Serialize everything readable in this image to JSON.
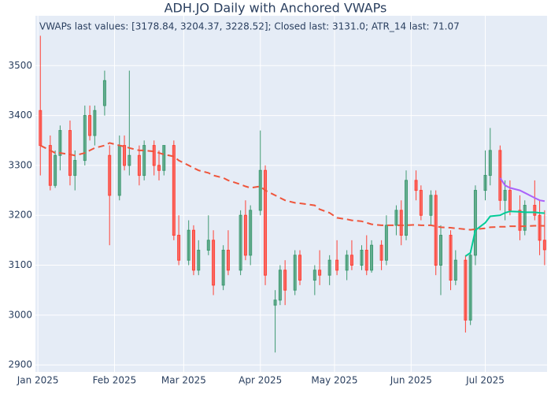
{
  "chart_data": {
    "type": "candlestick",
    "title": "ADH.JO Daily with Anchored VWAPs",
    "annotation": "VWAPs last values: [3178.84, 3204.37, 3228.52]; Closed last: 3131.0; ATR_14 last: 71.07",
    "x": [
      "2025-01-02",
      "2025-01-06",
      "2025-01-08",
      "2025-01-10",
      "2025-01-14",
      "2025-01-16",
      "2025-01-20",
      "2025-01-22",
      "2025-01-24",
      "2025-01-28",
      "2025-01-30",
      "2025-02-03",
      "2025-02-05",
      "2025-02-07",
      "2025-02-11",
      "2025-02-13",
      "2025-02-17",
      "2025-02-19",
      "2025-02-21",
      "2025-02-25",
      "2025-02-27",
      "2025-03-03",
      "2025-03-05",
      "2025-03-07",
      "2025-03-11",
      "2025-03-13",
      "2025-03-17",
      "2025-03-19",
      "2025-03-24",
      "2025-03-26",
      "2025-03-28",
      "2025-04-01",
      "2025-04-03",
      "2025-04-07",
      "2025-04-09",
      "2025-04-11",
      "2025-04-15",
      "2025-04-17",
      "2025-04-23",
      "2025-04-25",
      "2025-04-29",
      "2025-05-02",
      "2025-05-06",
      "2025-05-08",
      "2025-05-12",
      "2025-05-14",
      "2025-05-16",
      "2025-05-20",
      "2025-05-22",
      "2025-05-26",
      "2025-05-28",
      "2025-05-30",
      "2025-06-03",
      "2025-06-05",
      "2025-06-09",
      "2025-06-11",
      "2025-06-13",
      "2025-06-17",
      "2025-06-19",
      "2025-06-23",
      "2025-06-25",
      "2025-06-27",
      "2025-07-01",
      "2025-07-03",
      "2025-07-07",
      "2025-07-09",
      "2025-07-11",
      "2025-07-15",
      "2025-07-17",
      "2025-07-21",
      "2025-07-23",
      "2025-07-25"
    ],
    "open": [
      3410,
      3340,
      3260,
      3320,
      3370,
      3280,
      3310,
      3400,
      3360,
      3420,
      3320,
      3240,
      3340,
      3300,
      3320,
      3280,
      3340,
      3300,
      3290,
      3340,
      3160,
      3110,
      3170,
      3090,
      3130,
      3150,
      3060,
      3130,
      3090,
      3200,
      3120,
      3210,
      3290,
      3020,
      3030,
      3090,
      3050,
      3120,
      3070,
      3090,
      3080,
      3110,
      3090,
      3120,
      3100,
      3130,
      3090,
      3140,
      3110,
      3180,
      3210,
      3160,
      3270,
      3250,
      3200,
      3240,
      3100,
      3160,
      3070,
      3110,
      2990,
      3120,
      3250,
      3280,
      3330,
      3230,
      3250,
      3210,
      3170,
      3220,
      3200,
      3150
    ],
    "high": [
      3560,
      3360,
      3330,
      3380,
      3390,
      3330,
      3420,
      3420,
      3420,
      3490,
      3340,
      3360,
      3360,
      3490,
      3340,
      3350,
      3350,
      3330,
      3340,
      3350,
      3200,
      3190,
      3180,
      3150,
      3200,
      3170,
      3140,
      3170,
      3210,
      3230,
      3220,
      3370,
      3300,
      3050,
      3100,
      3110,
      3130,
      3130,
      3100,
      3130,
      3120,
      3150,
      3130,
      3150,
      3140,
      3160,
      3150,
      3150,
      3200,
      3220,
      3230,
      3290,
      3290,
      3260,
      3250,
      3250,
      3180,
      3170,
      3130,
      3120,
      3130,
      3260,
      3330,
      3375,
      3340,
      3270,
      3270,
      3240,
      3230,
      3270,
      3230,
      3210
    ],
    "low": [
      3280,
      3250,
      3255,
      3290,
      3260,
      3250,
      3300,
      3350,
      3340,
      3400,
      3140,
      3230,
      3290,
      3280,
      3260,
      3270,
      3280,
      3270,
      3280,
      3150,
      3100,
      3100,
      3080,
      3080,
      3120,
      3040,
      3050,
      3080,
      3080,
      3110,
      3100,
      3200,
      3060,
      2925,
      3020,
      3020,
      3040,
      3060,
      3040,
      3060,
      3060,
      3080,
      3070,
      3090,
      3090,
      3080,
      3085,
      3090,
      3100,
      3160,
      3140,
      3150,
      3230,
      3190,
      3180,
      3080,
      3040,
      3050,
      3060,
      2965,
      2980,
      3100,
      3230,
      3260,
      3210,
      3190,
      3200,
      3150,
      3160,
      3190,
      3120,
      3100
    ],
    "close": [
      3340,
      3260,
      3320,
      3370,
      3280,
      3310,
      3400,
      3360,
      3410,
      3470,
      3240,
      3340,
      3300,
      3320,
      3280,
      3340,
      3300,
      3290,
      3340,
      3160,
      3110,
      3170,
      3090,
      3130,
      3150,
      3060,
      3130,
      3090,
      3200,
      3120,
      3210,
      3290,
      3080,
      3030,
      3090,
      3050,
      3120,
      3070,
      3090,
      3080,
      3110,
      3090,
      3120,
      3100,
      3130,
      3090,
      3140,
      3110,
      3180,
      3210,
      3160,
      3270,
      3250,
      3200,
      3240,
      3100,
      3160,
      3070,
      3110,
      2990,
      3120,
      3250,
      3280,
      3330,
      3230,
      3250,
      3210,
      3170,
      3220,
      3200,
      3150,
      3131
    ],
    "increasing_color": "#3d9970",
    "decreasing_color": "#ff4136",
    "series": [
      {
        "color": "#EF553B",
        "dash": true,
        "values": [
          3340,
          3330,
          3325,
          3325,
          3322,
          3320,
          3325,
          3330,
          3335,
          3340,
          3345,
          3340,
          3338,
          3335,
          3330,
          3330,
          3328,
          3325,
          3322,
          3318,
          3310,
          3300,
          3295,
          3290,
          3285,
          3280,
          3275,
          3270,
          3262,
          3258,
          3255,
          3258,
          3250,
          3240,
          3235,
          3230,
          3225,
          3224,
          3220,
          3212,
          3205,
          3195,
          3192,
          3190,
          3188,
          3185,
          3182,
          3180,
          3180,
          3180,
          3180,
          3180,
          3181,
          3180,
          3180,
          3178,
          3176,
          3175,
          3174,
          3172,
          3171,
          3172,
          3174,
          3176,
          3177,
          3177,
          3178,
          3178,
          3178,
          3179,
          3179,
          3178.84
        ]
      },
      {
        "color": "#00CC96",
        "dash": false,
        "values": [
          null,
          null,
          null,
          null,
          null,
          null,
          null,
          null,
          null,
          null,
          null,
          null,
          null,
          null,
          null,
          null,
          null,
          null,
          null,
          null,
          null,
          null,
          null,
          null,
          null,
          null,
          null,
          null,
          null,
          null,
          null,
          null,
          null,
          null,
          null,
          null,
          null,
          null,
          null,
          null,
          null,
          null,
          null,
          null,
          null,
          null,
          null,
          null,
          null,
          null,
          null,
          null,
          null,
          null,
          null,
          null,
          null,
          null,
          null,
          3118,
          3125,
          3170,
          3185,
          3198,
          3200,
          3205,
          3208,
          3207,
          3206,
          3206,
          3205,
          3204.37
        ]
      },
      {
        "color": "#AB63FA",
        "dash": false,
        "values": [
          null,
          null,
          null,
          null,
          null,
          null,
          null,
          null,
          null,
          null,
          null,
          null,
          null,
          null,
          null,
          null,
          null,
          null,
          null,
          null,
          null,
          null,
          null,
          null,
          null,
          null,
          null,
          null,
          null,
          null,
          null,
          null,
          null,
          null,
          null,
          null,
          null,
          null,
          null,
          null,
          null,
          null,
          null,
          null,
          null,
          null,
          null,
          null,
          null,
          null,
          null,
          null,
          null,
          null,
          null,
          null,
          null,
          null,
          null,
          null,
          null,
          null,
          null,
          null,
          3275,
          3260,
          3255,
          3250,
          3245,
          3235,
          3230,
          3228.52
        ]
      }
    ],
    "xlim": [
      "2024-12-31",
      "2025-07-26"
    ],
    "xticks": [
      {
        "value": "2025-01-01",
        "label": "Jan 2025"
      },
      {
        "value": "2025-02-01",
        "label": "Feb 2025"
      },
      {
        "value": "2025-03-01",
        "label": "Mar 2025"
      },
      {
        "value": "2025-04-01",
        "label": "Apr 2025"
      },
      {
        "value": "2025-05-01",
        "label": "May 2025"
      },
      {
        "value": "2025-06-01",
        "label": "Jun 2025"
      },
      {
        "value": "2025-07-01",
        "label": "Jul 2025"
      }
    ],
    "ylim": [
      2886,
      3600
    ],
    "yticks": [
      2900,
      3000,
      3100,
      3200,
      3300,
      3400,
      3500
    ],
    "grid": true
  }
}
